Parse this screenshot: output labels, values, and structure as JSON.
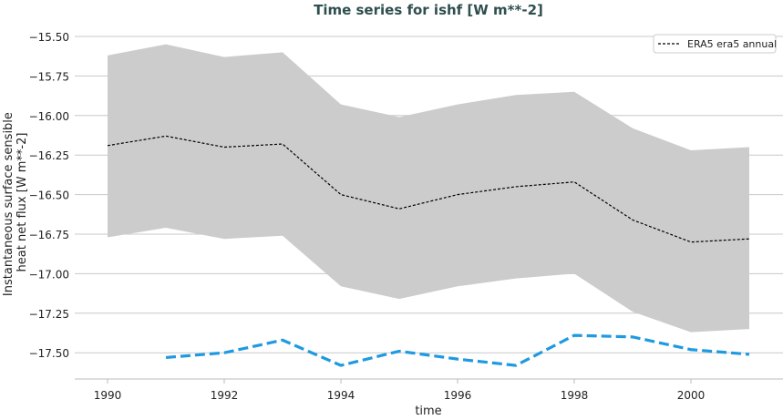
{
  "chart_data": {
    "type": "line",
    "title": "Time series for ishf [W m**-2]",
    "xlabel": "time",
    "ylabel": "Instantaneous surface sensible heat net flux [W m**-2]",
    "ylabel_lines": [
      "Instantaneous surface sensible",
      "heat net flux [W m**-2]"
    ],
    "xlim": [
      1987.5,
      2002.6
    ],
    "ylim": [
      -17.68,
      -15.39
    ],
    "x_ticks": [
      1990,
      1992,
      1994,
      1996,
      1998,
      2000
    ],
    "x_tick_labels": [
      "1990",
      "1992",
      "1994",
      "1996",
      "1998",
      "2000"
    ],
    "y_ticks": [
      -15.5,
      -15.75,
      -16.0,
      -16.25,
      -16.5,
      -16.75,
      -17.0,
      -17.25,
      -17.5
    ],
    "y_tick_labels": [
      "−15.50",
      "−15.75",
      "−16.00",
      "−16.25",
      "−16.50",
      "−16.75",
      "−17.00",
      "−17.25",
      "−17.50"
    ],
    "grid": "horizontal",
    "legend_position": "top-right",
    "series": [
      {
        "name": "ERA5 era5 annual",
        "style": "dashed",
        "color": "#000000",
        "x": [
          1990,
          1991,
          1992,
          1993,
          1994,
          1995,
          1996,
          1997,
          1998,
          1999,
          2000,
          2001
        ],
        "values": [
          -16.19,
          -16.13,
          -16.2,
          -16.18,
          -16.5,
          -16.59,
          -16.5,
          -16.45,
          -16.42,
          -16.66,
          -16.8,
          -16.78
        ],
        "band_upper": [
          -15.62,
          -15.55,
          -15.63,
          -15.6,
          -15.93,
          -16.01,
          -15.93,
          -15.87,
          -15.85,
          -16.08,
          -16.22,
          -16.2
        ],
        "band_lower": [
          -16.77,
          -16.71,
          -16.78,
          -16.76,
          -17.08,
          -17.16,
          -17.08,
          -17.03,
          -17.0,
          -17.24,
          -17.37,
          -17.35
        ],
        "band_color": "#cccccc"
      },
      {
        "style": "dashed",
        "color": "#1f9ae0",
        "x": [
          1991,
          1992,
          1993,
          1994,
          1995,
          1996,
          1997,
          1998,
          1999,
          2000,
          2001
        ],
        "values": [
          -17.53,
          -17.5,
          -17.42,
          -17.58,
          -17.49,
          -17.54,
          -17.58,
          -17.39,
          -17.4,
          -17.48,
          -17.51
        ]
      }
    ]
  }
}
